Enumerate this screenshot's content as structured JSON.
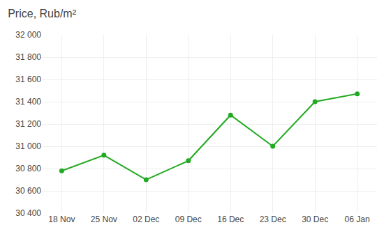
{
  "chart_data": {
    "type": "line",
    "title": "Price, Rub/m²",
    "categories": [
      "18 Nov",
      "25 Nov",
      "02 Dec",
      "09 Dec",
      "16 Dec",
      "23 Dec",
      "30 Dec",
      "06 Jan"
    ],
    "values": [
      30780,
      30920,
      30700,
      30870,
      31280,
      31000,
      31400,
      31470
    ],
    "color": "#22aa22",
    "marker": "circle",
    "ylim": [
      30400,
      32000
    ],
    "yticks": [
      {
        "value": 30400,
        "label": "30 400"
      },
      {
        "value": 30600,
        "label": "30 600"
      },
      {
        "value": 30800,
        "label": "30 800"
      },
      {
        "value": 31000,
        "label": "31 000"
      },
      {
        "value": 31200,
        "label": "31 200"
      },
      {
        "value": 31400,
        "label": "31 400"
      },
      {
        "value": 31600,
        "label": "31 600"
      },
      {
        "value": 31800,
        "label": "31 800"
      },
      {
        "value": 32000,
        "label": "32 000"
      }
    ],
    "grid": true
  }
}
